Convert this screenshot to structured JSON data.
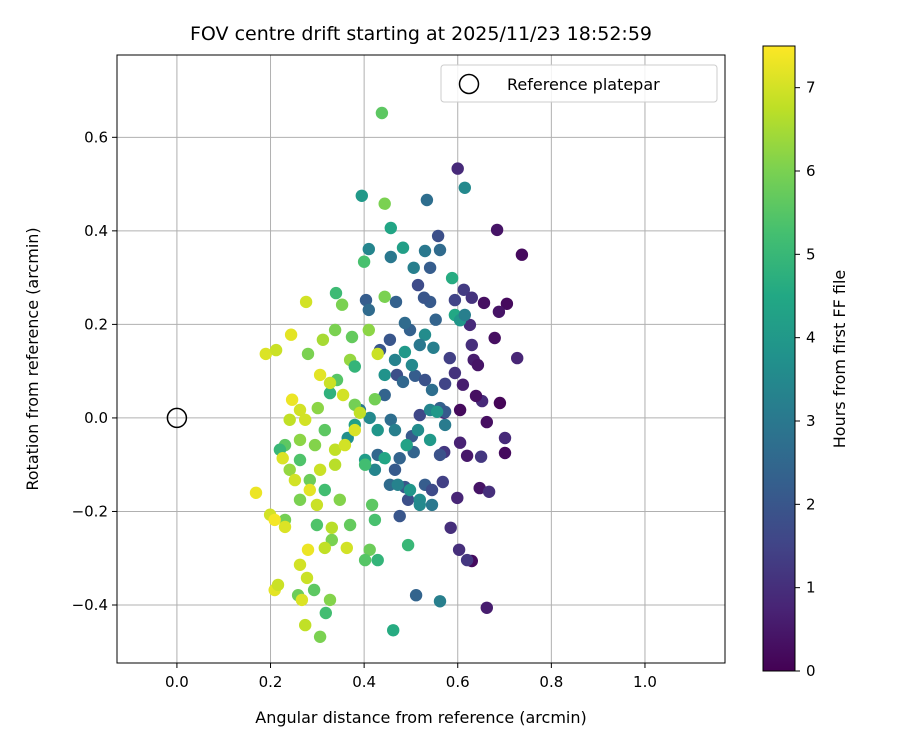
{
  "chart_data": {
    "type": "scatter",
    "title": "FOV centre drift starting at 2025/11/23 18:52:59",
    "xlabel": "Angular distance from reference (arcmin)",
    "ylabel": "Rotation from reference (arcmin)",
    "xlim": [
      -0.128,
      1.171
    ],
    "ylim": [
      -0.524,
      0.776
    ],
    "xticks": [
      0.0,
      0.2,
      0.4,
      0.6,
      0.8,
      1.0
    ],
    "xtick_labels": [
      "0.0",
      "0.2",
      "0.4",
      "0.6",
      "0.8",
      "1.0"
    ],
    "yticks": [
      -0.4,
      -0.2,
      0.0,
      0.2,
      0.4,
      0.6
    ],
    "ytick_labels": [
      "−0.4",
      "−0.2",
      "0.0",
      "0.2",
      "0.4",
      "0.6"
    ],
    "grid": true,
    "legend": {
      "placement": "top-right",
      "label": "Reference platepar"
    },
    "reference_point": [
      0.0,
      0.0
    ],
    "colorbar": {
      "label": "Hours from first FF file",
      "range": [
        0,
        7.5
      ],
      "ticks": [
        0,
        1,
        2,
        3,
        4,
        5,
        6,
        7
      ],
      "tick_labels": [
        "0",
        "1",
        "2",
        "3",
        "4",
        "5",
        "6",
        "7"
      ],
      "colormap": "viridis"
    },
    "points_format": [
      "x",
      "y",
      "hours"
    ],
    "points": [
      [
        0.737,
        0.349,
        0.2
      ],
      [
        0.684,
        0.402,
        0.4
      ],
      [
        0.6,
        0.533,
        0.9
      ],
      [
        0.705,
        0.244,
        0.2
      ],
      [
        0.656,
        0.246,
        0.3
      ],
      [
        0.688,
        0.227,
        0.4
      ],
      [
        0.679,
        0.171,
        0.3
      ],
      [
        0.727,
        0.128,
        0.8
      ],
      [
        0.69,
        0.032,
        0.1
      ],
      [
        0.701,
        -0.043,
        0.9
      ],
      [
        0.701,
        -0.075,
        0.2
      ],
      [
        0.662,
        -0.009,
        0.3
      ],
      [
        0.647,
        -0.15,
        0.4
      ],
      [
        0.667,
        -0.158,
        1.0
      ],
      [
        0.662,
        -0.406,
        0.6
      ],
      [
        0.63,
        -0.306,
        0.2
      ],
      [
        0.62,
        -0.304,
        1.2
      ],
      [
        0.603,
        -0.282,
        1.0
      ],
      [
        0.599,
        -0.171,
        0.8
      ],
      [
        0.605,
        -0.053,
        0.7
      ],
      [
        0.62,
        -0.081,
        0.5
      ],
      [
        0.65,
        -0.083,
        1.2
      ],
      [
        0.634,
        0.124,
        0.6
      ],
      [
        0.643,
        0.113,
        0.4
      ],
      [
        0.63,
        0.156,
        1.0
      ],
      [
        0.652,
        0.036,
        0.9
      ],
      [
        0.639,
        0.047,
        0.3
      ],
      [
        0.605,
        0.017,
        0.2
      ],
      [
        0.611,
        0.071,
        0.6
      ],
      [
        0.594,
        0.096,
        1.1
      ],
      [
        0.583,
        0.128,
        1.4
      ],
      [
        0.626,
        0.199,
        0.9
      ],
      [
        0.613,
        0.274,
        1.3
      ],
      [
        0.594,
        0.252,
        1.5
      ],
      [
        0.63,
        0.257,
        1.1
      ],
      [
        0.573,
        0.073,
        1.5
      ],
      [
        0.571,
        -0.073,
        1.2
      ],
      [
        0.585,
        -0.235,
        1.0
      ],
      [
        0.571,
        0.011,
        0.7
      ],
      [
        0.562,
        0.017,
        1.6
      ],
      [
        0.558,
        0.389,
        1.8
      ],
      [
        0.562,
        0.359,
        2.6
      ],
      [
        0.541,
        0.248,
        2.1
      ],
      [
        0.515,
        0.284,
        1.7
      ],
      [
        0.528,
        0.257,
        2.0
      ],
      [
        0.553,
        0.21,
        2.4
      ],
      [
        0.498,
        0.188,
        2.3
      ],
      [
        0.487,
        0.203,
        2.6
      ],
      [
        0.468,
        0.248,
        2.3
      ],
      [
        0.455,
        0.167,
        2.0
      ],
      [
        0.47,
        0.092,
        1.8
      ],
      [
        0.483,
        0.077,
        2.5
      ],
      [
        0.509,
        0.09,
        2.2
      ],
      [
        0.53,
        0.081,
        1.9
      ],
      [
        0.545,
        0.06,
        2.7
      ],
      [
        0.562,
        0.021,
        2.3
      ],
      [
        0.519,
        0.006,
        1.6
      ],
      [
        0.502,
        -0.039,
        2.1
      ],
      [
        0.476,
        -0.086,
        2.4
      ],
      [
        0.487,
        -0.148,
        2.0
      ],
      [
        0.494,
        -0.175,
        1.8
      ],
      [
        0.53,
        -0.143,
        2.2
      ],
      [
        0.545,
        -0.154,
        1.7
      ],
      [
        0.568,
        -0.137,
        1.4
      ],
      [
        0.562,
        -0.079,
        1.9
      ],
      [
        0.511,
        -0.379,
        2.4
      ],
      [
        0.404,
        0.252,
        2.2
      ],
      [
        0.41,
        0.231,
        2.6
      ],
      [
        0.434,
        0.145,
        2.0
      ],
      [
        0.444,
        0.049,
        2.4
      ],
      [
        0.457,
        -0.004,
        2.7
      ],
      [
        0.429,
        -0.079,
        2.5
      ],
      [
        0.466,
        -0.111,
        2.1
      ],
      [
        0.476,
        -0.21,
        2.0
      ],
      [
        0.455,
        -0.143,
        2.6
      ],
      [
        0.541,
        0.321,
        2.2
      ],
      [
        0.534,
        0.466,
        2.7
      ],
      [
        0.573,
        0.013,
        2.1
      ],
      [
        0.506,
        -0.073,
        2.4
      ],
      [
        0.615,
        0.492,
        3.5
      ],
      [
        0.457,
        0.344,
        3.0
      ],
      [
        0.483,
        0.364,
        4.2
      ],
      [
        0.41,
        0.361,
        3.4
      ],
      [
        0.395,
        0.475,
        4.0
      ],
      [
        0.457,
        0.406,
        4.4
      ],
      [
        0.53,
        0.357,
        3.0
      ],
      [
        0.588,
        0.299,
        4.6
      ],
      [
        0.506,
        0.321,
        3.2
      ],
      [
        0.548,
        0.15,
        3.2
      ],
      [
        0.53,
        0.178,
        3.6
      ],
      [
        0.519,
        0.156,
        3.0
      ],
      [
        0.502,
        0.113,
        3.5
      ],
      [
        0.487,
        0.141,
        4.0
      ],
      [
        0.466,
        0.124,
        3.3
      ],
      [
        0.444,
        0.092,
        3.8
      ],
      [
        0.594,
        0.22,
        4.5
      ],
      [
        0.605,
        0.209,
        3.9
      ],
      [
        0.541,
        0.017,
        3.4
      ],
      [
        0.573,
        -0.015,
        3.1
      ],
      [
        0.541,
        -0.047,
        4.0
      ],
      [
        0.515,
        -0.026,
        3.6
      ],
      [
        0.491,
        -0.058,
        4.3
      ],
      [
        0.466,
        -0.026,
        3.2
      ],
      [
        0.429,
        -0.026,
        3.9
      ],
      [
        0.412,
        0.0,
        3.5
      ],
      [
        0.391,
        0.017,
        3.0
      ],
      [
        0.38,
        -0.015,
        4.2
      ],
      [
        0.365,
        -0.043,
        3.7
      ],
      [
        0.402,
        -0.09,
        4.1
      ],
      [
        0.423,
        -0.111,
        3.4
      ],
      [
        0.444,
        -0.086,
        4.4
      ],
      [
        0.472,
        -0.143,
        3.3
      ],
      [
        0.498,
        -0.154,
        3.9
      ],
      [
        0.519,
        -0.175,
        3.6
      ],
      [
        0.545,
        -0.186,
        3.0
      ],
      [
        0.562,
        -0.392,
        3.2
      ],
      [
        0.519,
        -0.186,
        3.5
      ],
      [
        0.556,
        0.013,
        4.0
      ],
      [
        0.615,
        0.22,
        3.2
      ],
      [
        0.438,
        0.652,
        5.6
      ],
      [
        0.444,
        0.458,
        6.0
      ],
      [
        0.4,
        0.334,
        5.3
      ],
      [
        0.444,
        0.259,
        6.0
      ],
      [
        0.41,
        0.188,
        6.2
      ],
      [
        0.34,
        0.267,
        5.1
      ],
      [
        0.353,
        0.242,
        6.0
      ],
      [
        0.338,
        0.188,
        6.0
      ],
      [
        0.312,
        0.167,
        6.5
      ],
      [
        0.28,
        0.137,
        6.0
      ],
      [
        0.374,
        0.173,
        5.7
      ],
      [
        0.37,
        0.124,
        6.3
      ],
      [
        0.342,
        0.081,
        5.5
      ],
      [
        0.38,
        0.028,
        5.9
      ],
      [
        0.327,
        0.053,
        4.8
      ],
      [
        0.301,
        0.021,
        6.2
      ],
      [
        0.316,
        -0.026,
        5.6
      ],
      [
        0.295,
        -0.058,
        6.1
      ],
      [
        0.263,
        -0.09,
        5.4
      ],
      [
        0.241,
        -0.111,
        6.3
      ],
      [
        0.284,
        -0.133,
        5.8
      ],
      [
        0.263,
        -0.175,
        6.0
      ],
      [
        0.231,
        -0.218,
        5.9
      ],
      [
        0.316,
        -0.154,
        5.2
      ],
      [
        0.348,
        -0.175,
        6.1
      ],
      [
        0.37,
        -0.229,
        5.7
      ],
      [
        0.417,
        -0.186,
        5.6
      ],
      [
        0.423,
        -0.218,
        5.3
      ],
      [
        0.412,
        -0.282,
        5.8
      ],
      [
        0.429,
        -0.304,
        4.9
      ],
      [
        0.402,
        -0.304,
        5.5
      ],
      [
        0.331,
        -0.261,
        6.0
      ],
      [
        0.299,
        -0.229,
        5.4
      ],
      [
        0.327,
        -0.389,
        6.1
      ],
      [
        0.293,
        -0.368,
        5.6
      ],
      [
        0.318,
        -0.417,
        5.2
      ],
      [
        0.306,
        -0.468,
        6.0
      ],
      [
        0.259,
        -0.379,
        5.8
      ],
      [
        0.462,
        -0.454,
        4.6
      ],
      [
        0.494,
        -0.272,
        5.0
      ],
      [
        0.263,
        -0.047,
        6.2
      ],
      [
        0.231,
        -0.058,
        5.6
      ],
      [
        0.22,
        -0.068,
        5.0
      ],
      [
        0.402,
        -0.1,
        5.2
      ],
      [
        0.423,
        0.04,
        5.9
      ],
      [
        0.38,
        0.11,
        4.9
      ],
      [
        0.169,
        -0.16,
        7.3
      ],
      [
        0.199,
        -0.207,
        7.0
      ],
      [
        0.209,
        -0.218,
        7.4
      ],
      [
        0.231,
        -0.233,
        7.1
      ],
      [
        0.209,
        -0.368,
        7.2
      ],
      [
        0.216,
        -0.357,
        6.9
      ],
      [
        0.274,
        -0.443,
        6.8
      ],
      [
        0.267,
        -0.389,
        7.1
      ],
      [
        0.278,
        -0.342,
        6.9
      ],
      [
        0.263,
        -0.314,
        7.0
      ],
      [
        0.28,
        -0.282,
        7.3
      ],
      [
        0.316,
        -0.278,
        6.8
      ],
      [
        0.363,
        -0.278,
        7.0
      ],
      [
        0.331,
        -0.235,
        6.7
      ],
      [
        0.299,
        -0.186,
        6.9
      ],
      [
        0.284,
        -0.154,
        7.2
      ],
      [
        0.252,
        -0.133,
        7.0
      ],
      [
        0.241,
        -0.004,
        6.8
      ],
      [
        0.246,
        0.039,
        7.3
      ],
      [
        0.263,
        0.017,
        7.0
      ],
      [
        0.19,
        0.137,
        7.1
      ],
      [
        0.212,
        0.145,
        6.9
      ],
      [
        0.244,
        0.178,
        7.2
      ],
      [
        0.276,
        0.248,
        7.0
      ],
      [
        0.226,
        -0.086,
        7.1
      ],
      [
        0.306,
        -0.111,
        6.9
      ],
      [
        0.338,
        -0.068,
        6.8
      ],
      [
        0.359,
        -0.058,
        7.0
      ],
      [
        0.38,
        -0.026,
        7.1
      ],
      [
        0.391,
        0.011,
        6.8
      ],
      [
        0.355,
        0.049,
        7.0
      ],
      [
        0.429,
        0.137,
        6.9
      ],
      [
        0.306,
        0.092,
        7.2
      ],
      [
        0.327,
        0.075,
        6.9
      ],
      [
        0.274,
        -0.004,
        7.0
      ],
      [
        0.338,
        -0.1,
        6.7
      ]
    ]
  }
}
